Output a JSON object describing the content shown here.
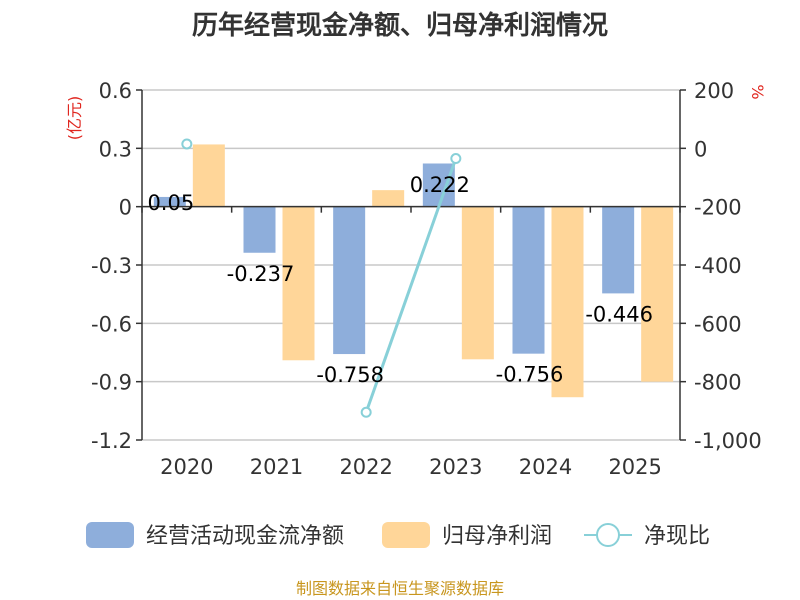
{
  "chart_data": {
    "type": "bar",
    "title": "历年经营现金净额、归母净利润情况",
    "categories": [
      "2020",
      "2021",
      "2022",
      "2023",
      "2024",
      "2025"
    ],
    "series": [
      {
        "name": "经营活动现金流净额",
        "axis": "left",
        "kind": "bar",
        "color": "#8eaedb",
        "values": [
          0.05,
          -0.237,
          -0.758,
          0.222,
          -0.756,
          -0.446
        ],
        "labels": [
          "0.05",
          "-0.237",
          "-0.758",
          "0.222",
          "-0.756",
          "-0.446"
        ]
      },
      {
        "name": "归母净利润",
        "axis": "left",
        "kind": "bar",
        "color": "#ffd699",
        "values": [
          0.32,
          -0.79,
          0.085,
          -0.785,
          -0.98,
          -0.9
        ]
      },
      {
        "name": "净现比",
        "axis": "right",
        "kind": "line",
        "color": "#88d0d8",
        "values": [
          15,
          null,
          -905,
          -35,
          null,
          null
        ]
      }
    ],
    "left_axis": {
      "unit": "(亿元)",
      "min": -1.2,
      "max": 0.6,
      "ticks": [
        0.6,
        0.3,
        0,
        -0.3,
        -0.6,
        -0.9,
        -1.2
      ],
      "tick_labels": [
        "0.6",
        "0.3",
        "0",
        "-0.3",
        "-0.6",
        "-0.9",
        "-1.2"
      ]
    },
    "right_axis": {
      "unit": "%",
      "min": -1000,
      "max": 200,
      "ticks": [
        200,
        0,
        -200,
        -400,
        -600,
        -800,
        -1000
      ],
      "tick_labels": [
        "200",
        "0",
        "-200",
        "-400",
        "-600",
        "-800",
        "-1,000"
      ]
    },
    "legend": [
      "经营活动现金流净额",
      "归母净利润",
      "净现比"
    ],
    "legend_position": "bottom",
    "grid": true
  },
  "source": "制图数据来自恒生聚源数据库"
}
